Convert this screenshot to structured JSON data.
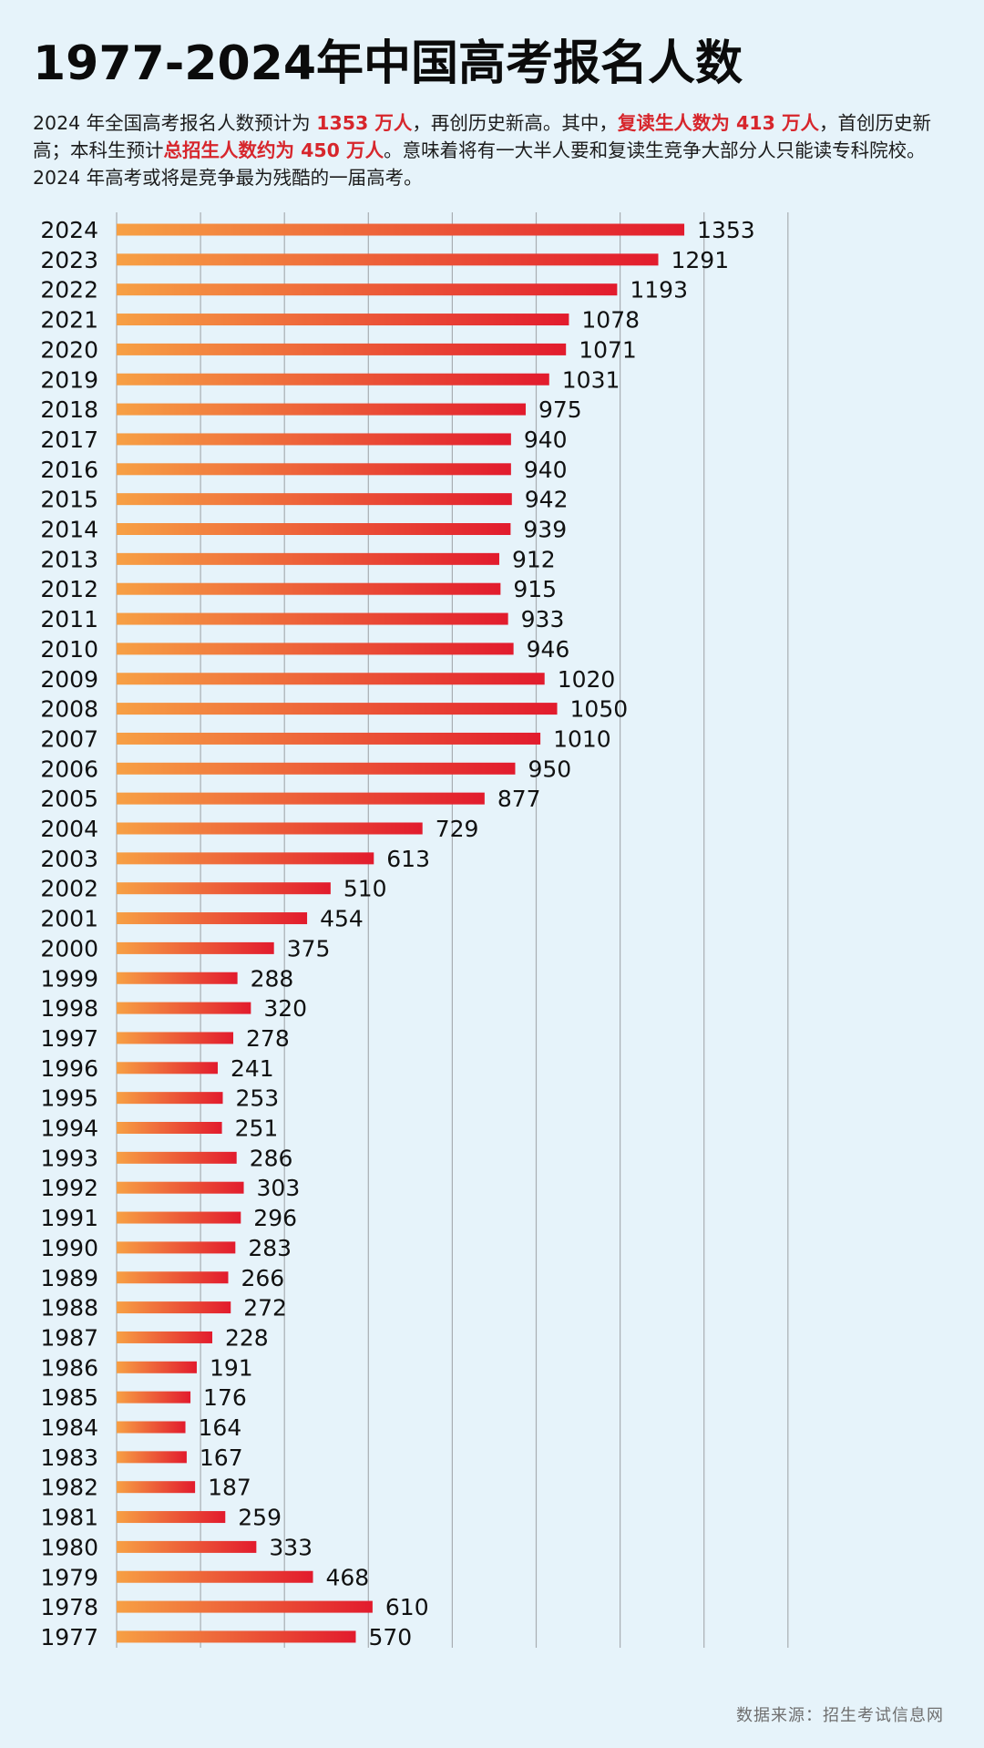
{
  "title": "1977-2024年中国高考报名人数",
  "intro": {
    "p1": "2024 年全国高考报名人数预计为 ",
    "h1": "1353 万人",
    "p2": "，再创历史新高。其中，",
    "h2": "复读生人数为 413 万人",
    "p3": "，首创历史新高；本科生预计",
    "h3": "总招生人数约为 450 万人",
    "p4": "。意味着将有一大半人要和复读生竞争大部分人只能读专科院校。2024 年高考或将是竞争最为残酷的一届高考。"
  },
  "source": "数据来源：招生考试信息网",
  "colors": {
    "background": "#e6f3fa",
    "bar_start": "#f7a044",
    "bar_end": "#e21b2d",
    "grid": "#a8adb2",
    "highlight": "#d7262c"
  },
  "chart_data": {
    "type": "bar",
    "orientation": "horizontal",
    "categories": [
      "2024",
      "2023",
      "2022",
      "2021",
      "2020",
      "2019",
      "2018",
      "2017",
      "2016",
      "2015",
      "2014",
      "2013",
      "2012",
      "2011",
      "2010",
      "2009",
      "2008",
      "2007",
      "2006",
      "2005",
      "2004",
      "2003",
      "2002",
      "2001",
      "2000",
      "1999",
      "1998",
      "1997",
      "1996",
      "1995",
      "1994",
      "1993",
      "1992",
      "1991",
      "1990",
      "1989",
      "1988",
      "1987",
      "1986",
      "1985",
      "1984",
      "1983",
      "1982",
      "1981",
      "1980",
      "1979",
      "1978",
      "1977"
    ],
    "values": [
      1353,
      1291,
      1193,
      1078,
      1071,
      1031,
      975,
      940,
      940,
      942,
      939,
      912,
      915,
      933,
      946,
      1020,
      1050,
      1010,
      950,
      877,
      729,
      613,
      510,
      454,
      375,
      288,
      320,
      278,
      241,
      253,
      251,
      286,
      303,
      296,
      283,
      266,
      272,
      228,
      191,
      176,
      164,
      167,
      187,
      259,
      333,
      468,
      610,
      570
    ],
    "value_labels": [
      "1353",
      "1291",
      "1193",
      "1078",
      "1071",
      "1031",
      "975",
      "940",
      "940",
      "942",
      "939",
      "912",
      "915",
      "933",
      "946",
      "1020",
      "1050",
      "1010",
      "950",
      "877",
      "729",
      "613",
      "510",
      "454",
      "375",
      "288",
      "320",
      "278",
      "241",
      "253",
      "251",
      "286",
      "303",
      "296",
      "283",
      "266",
      "272",
      "228",
      "191",
      "176",
      "164",
      "167",
      "187",
      "259",
      "333",
      "468",
      "610",
      "570"
    ],
    "xlim": [
      0,
      1600
    ],
    "grid": true,
    "legend": "none"
  }
}
